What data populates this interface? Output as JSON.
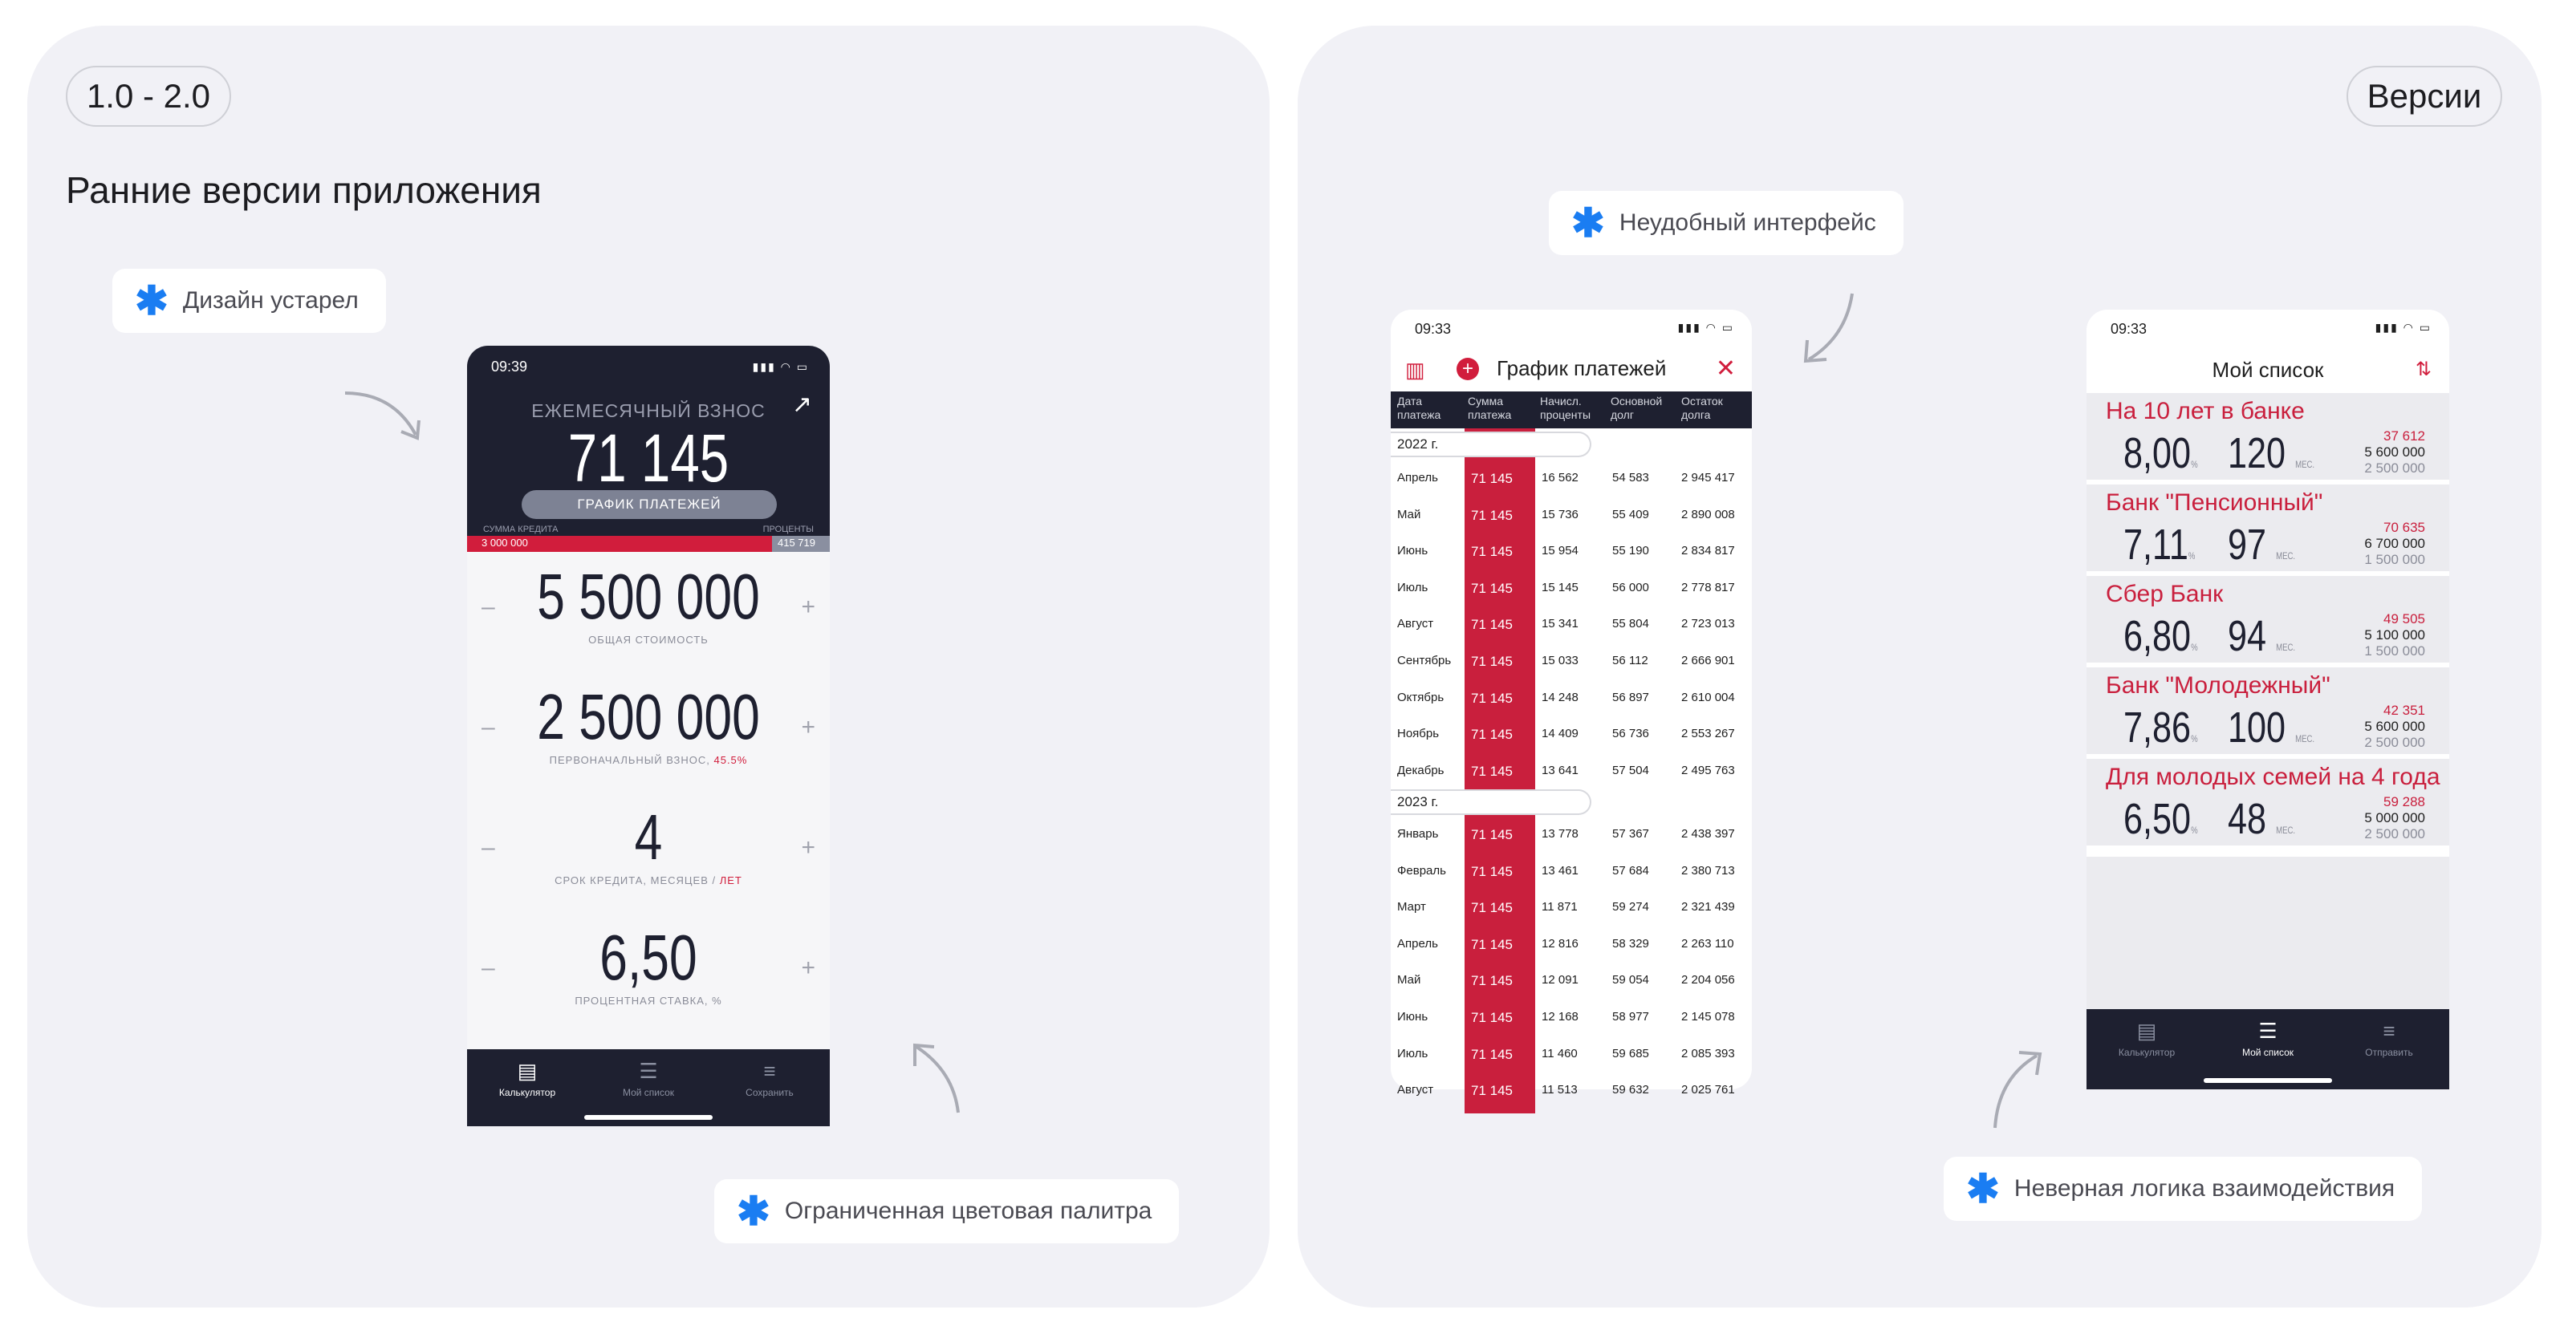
{
  "left_panel": {
    "version_pill": "1.0 - 2.0",
    "heading": "Ранние версии приложения",
    "note_design": "Дизайн устарел",
    "note_palette": "Ограниченная цветовая палитра"
  },
  "right_panel": {
    "versions_pill": "Версии",
    "note_interface": "Неудобный интерфейс",
    "note_logic": "Неверная логика взаимодействия"
  },
  "icons": {
    "star": "asterisk-icon",
    "arrow": "curved-arrow-icon",
    "expand": "expand-arrow-icon",
    "chart": "bar-chart-icon",
    "add": "plus-circle-icon",
    "close": "close-icon",
    "sort": "sort-icon"
  },
  "colors": {
    "accent_red": "#d11d3c",
    "dark": "#1e2030",
    "note_star": "#1a7df2",
    "panel_bg": "#f1f1f6"
  },
  "calculator": {
    "time": "09:39",
    "monthly_label": "ЕЖЕМЕСЯЧНЫЙ ВЗНОС",
    "monthly_value": "71 145",
    "schedule_button": "ГРАФИК ПЛАТЕЖЕЙ",
    "sum_label": "СУММА КРЕДИТА",
    "sum_value": "3 000 000",
    "interest_label": "ПРОЦЕНТЫ",
    "interest_value": "415 719",
    "fields": [
      {
        "value": "5 500 000",
        "caption": "ОБЩАЯ СТОИМОСТЬ",
        "extra": ""
      },
      {
        "value": "2 500 000",
        "caption": "ПЕРВОНАЧАЛЬНЫЙ ВЗНОС,",
        "extra": "45.5%"
      },
      {
        "value": "4",
        "caption": "СРОК КРЕДИТА, МЕСЯЦЕВ /",
        "extra": "ЛЕТ"
      },
      {
        "value": "6,50",
        "caption": "ПРОЦЕНТНАЯ СТАВКА, %",
        "extra": ""
      }
    ],
    "tabs": [
      "Калькулятор",
      "Мой список",
      "Сохранить"
    ]
  },
  "schedule": {
    "time": "09:33",
    "title": "График платежей",
    "columns": [
      "Дата платежа",
      "Сумма платежа",
      "Начисл. проценты",
      "Основной долг",
      "Остаток долга"
    ],
    "year1": "2022 г.",
    "year2": "2023 г.",
    "rows1": [
      [
        "Апрель",
        "71 145",
        "16 562",
        "54 583",
        "2 945 417"
      ],
      [
        "Май",
        "71 145",
        "15 736",
        "55 409",
        "2 890 008"
      ],
      [
        "Июнь",
        "71 145",
        "15 954",
        "55 190",
        "2 834 817"
      ],
      [
        "Июль",
        "71 145",
        "15 145",
        "56 000",
        "2 778 817"
      ],
      [
        "Август",
        "71 145",
        "15 341",
        "55 804",
        "2 723 013"
      ],
      [
        "Сентябрь",
        "71 145",
        "15 033",
        "56 112",
        "2 666 901"
      ],
      [
        "Октябрь",
        "71 145",
        "14 248",
        "56 897",
        "2 610 004"
      ],
      [
        "Ноябрь",
        "71 145",
        "14 409",
        "56 736",
        "2 553 267"
      ],
      [
        "Декабрь",
        "71 145",
        "13 641",
        "57 504",
        "2 495 763"
      ]
    ],
    "rows2": [
      [
        "Январь",
        "71 145",
        "13 778",
        "57 367",
        "2 438 397"
      ],
      [
        "Февраль",
        "71 145",
        "13 461",
        "57 684",
        "2 380 713"
      ],
      [
        "Март",
        "71 145",
        "11 871",
        "59 274",
        "2 321 439"
      ],
      [
        "Апрель",
        "71 145",
        "12 816",
        "58 329",
        "2 263 110"
      ],
      [
        "Май",
        "71 145",
        "12 091",
        "59 054",
        "2 204 056"
      ],
      [
        "Июнь",
        "71 145",
        "12 168",
        "58 977",
        "2 145 078"
      ],
      [
        "Июль",
        "71 145",
        "11 460",
        "59 685",
        "2 085 393"
      ],
      [
        "Август",
        "71 145",
        "11 513",
        "59 632",
        "2 025 761"
      ]
    ]
  },
  "mylist": {
    "time": "09:33",
    "title": "Мой список",
    "items": [
      {
        "name": "На 10 лет в банке",
        "rate": "8,00",
        "term": "120",
        "payment": "37 612",
        "total": "5 600 000",
        "down": "2 500 000"
      },
      {
        "name": "Банк \"Пенсионный\"",
        "rate": "7,11",
        "term": "97",
        "payment": "70 635",
        "total": "6 700 000",
        "down": "1 500 000"
      },
      {
        "name": "Сбер Банк",
        "rate": "6,80",
        "term": "94",
        "payment": "49 505",
        "total": "5 100 000",
        "down": "1 500 000"
      },
      {
        "name": "Банк \"Молодежный\"",
        "rate": "7,86",
        "term": "100",
        "payment": "42 351",
        "total": "5 600 000",
        "down": "2 500 000"
      },
      {
        "name": "Для молодых семей на 4 года",
        "rate": "6,50",
        "term": "48",
        "payment": "59 288",
        "total": "5 000 000",
        "down": "2 500 000"
      }
    ],
    "pct_unit": "%",
    "term_unit": "МЕС.",
    "tabs": [
      "Калькулятор",
      "Мой список",
      "Отправить"
    ]
  }
}
